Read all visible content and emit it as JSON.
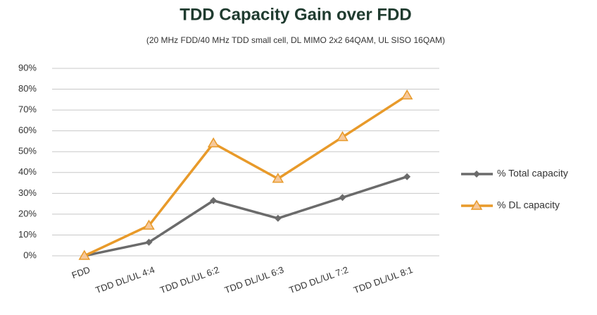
{
  "chart_data": {
    "type": "line",
    "title": "TDD Capacity  Gain over FDD",
    "subtitle": "(20 MHz FDD/40 MHz TDD small cell, DL MIMO 2x2 64QAM, UL SISO 16QAM)",
    "categories": [
      "FDD",
      "TDD DL/UL 4:4",
      "TDD DL/UL 6:2",
      "TDD DL/UL 6:3",
      "TDD DL/UL 7:2",
      "TDD DL/UL 8:1"
    ],
    "series": [
      {
        "name": "% Total capacity",
        "color": "#6b6b6b",
        "marker": "diamond",
        "values": [
          0,
          6.5,
          26.5,
          18,
          28,
          38
        ]
      },
      {
        "name": "% DL capacity",
        "color": "#e89a2a",
        "marker": "triangle",
        "values": [
          0,
          14.5,
          54,
          37,
          57,
          77
        ]
      }
    ],
    "ylim": [
      0,
      90
    ],
    "yticks": [
      {
        "value": 0,
        "label": "0%"
      },
      {
        "value": 10,
        "label": "10%"
      },
      {
        "value": 20,
        "label": "20%"
      },
      {
        "value": 30,
        "label": "30%"
      },
      {
        "value": 40,
        "label": "40%"
      },
      {
        "value": 50,
        "label": "50%"
      },
      {
        "value": 60,
        "label": "60%"
      },
      {
        "value": 70,
        "label": "70%"
      },
      {
        "value": 80,
        "label": "80%"
      },
      {
        "value": 90,
        "label": "90%"
      }
    ],
    "grid": true,
    "legend": "right"
  }
}
